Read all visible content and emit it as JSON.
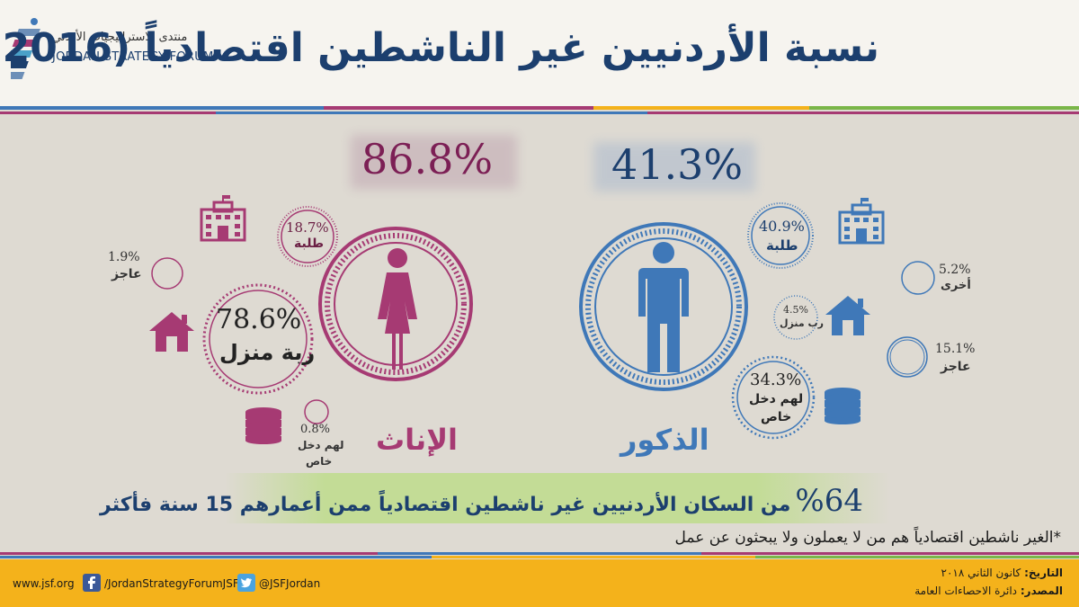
{
  "header": {
    "title": "نسبة الأردنيين غير الناشطين اقتصادياً (2016)",
    "logo_ar": "منتدى الاستراتيجيات الأردني",
    "logo_en": "JORDAN STRATEGY FORUM"
  },
  "colors": {
    "female": "#a63a73",
    "male": "#3f78b8",
    "navy": "#1c3f6e",
    "footer": "#f4b21b"
  },
  "female": {
    "total": "86.8%",
    "label": "الإناث",
    "students_value": "18.7%",
    "students_label": "طلبة",
    "disabled_value": "1.9%",
    "disabled_label": "عاجز",
    "housewife_value": "78.6%",
    "housewife_label": "ربة منزل",
    "income_value": "0.8%",
    "income_label_1": "لهم دخل",
    "income_label_2": "خاص"
  },
  "male": {
    "total": "41.3%",
    "label": "الذكور",
    "students_value": "40.9%",
    "students_label": "طلبة",
    "other_value": "5.2%",
    "other_label": "أخرى",
    "homemaker_value": "4.5%",
    "homemaker_label": "رب منزل",
    "disabled_value": "15.1%",
    "disabled_label": "عاجز",
    "income_value": "34.3%",
    "income_label_1": "لهم دخل",
    "income_label_2": "خاص"
  },
  "summary": {
    "percent": "%64",
    "text": "من السكان الأردنيين غير ناشطين اقتصادياً ممن أعمارهم 15 سنة فأكثر"
  },
  "note": "*الغير ناشطين اقتصادياً هم من لا يعملون ولا يبحثون عن عمل",
  "footer": {
    "website": "www.jsf.org",
    "facebook": "/JordanStrategyForumJSF",
    "twitter": "@JSFJordan",
    "date_label": "التاريخ:",
    "date_value": "كانون الثاني ٢٠١٨",
    "source_label": "المصدر:",
    "source_value": "دائرة الاحصاءات العامة"
  }
}
